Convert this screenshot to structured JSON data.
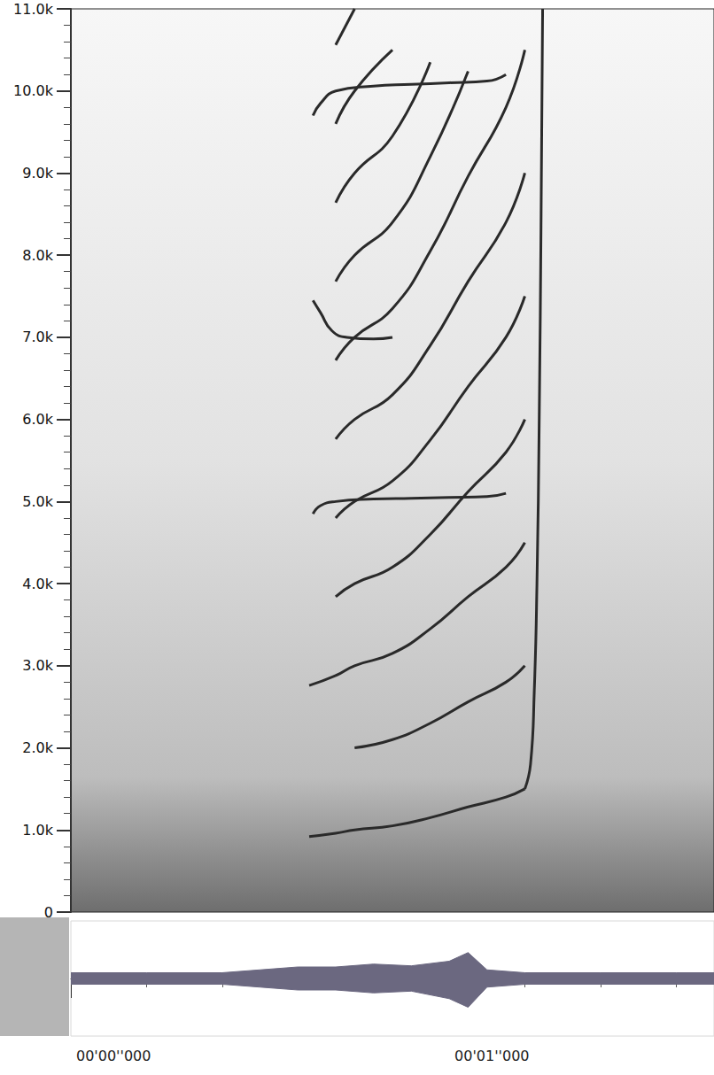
{
  "chart_data": [
    {
      "type": "line",
      "xlim": [
        0,
        1.7
      ],
      "ylim": [
        0,
        11000
      ],
      "yticks": [
        {
          "value": 0,
          "label": "0"
        },
        {
          "value": 1000,
          "label": "1.0k"
        },
        {
          "value": 2000,
          "label": "2.0k"
        },
        {
          "value": 3000,
          "label": "3.0k"
        },
        {
          "value": 4000,
          "label": "4.0k"
        },
        {
          "value": 5000,
          "label": "5.0k"
        },
        {
          "value": 6000,
          "label": "6.0k"
        },
        {
          "value": 7000,
          "label": "7.0k"
        },
        {
          "value": 8000,
          "label": "8.0k"
        },
        {
          "value": 9000,
          "label": "9.0k"
        },
        {
          "value": 10000,
          "label": "10.0k"
        },
        {
          "value": 11000,
          "label": "11.0k"
        }
      ],
      "tick_labels": "y",
      "grid": false,
      "color": "#2a2a2a",
      "series": [
        {
          "x": [
            0.63,
            0.7,
            0.75,
            0.85,
            0.95,
            1.05,
            1.15,
            1.2
          ],
          "values": [
            920,
            960,
            1000,
            1050,
            1150,
            1280,
            1400,
            1500
          ]
        },
        {
          "x": [
            0.75,
            0.85,
            0.95,
            1.05,
            1.15,
            1.2
          ],
          "values": [
            2000,
            2100,
            2300,
            2560,
            2800,
            3000
          ]
        },
        {
          "x": [
            0.63,
            0.7,
            0.75,
            0.85,
            0.95,
            1.05,
            1.15,
            1.2
          ],
          "values": [
            2760,
            2880,
            3000,
            3150,
            3450,
            3840,
            4200,
            4500
          ]
        },
        {
          "x": [
            0.7,
            0.75,
            0.85,
            0.95,
            1.05,
            1.15,
            1.2
          ],
          "values": [
            3840,
            4000,
            4200,
            4600,
            5120,
            5600,
            6000
          ]
        },
        {
          "x": [
            0.7,
            0.75,
            0.85,
            0.95,
            1.05,
            1.15,
            1.2
          ],
          "values": [
            4800,
            5000,
            5250,
            5750,
            6400,
            7000,
            7500
          ]
        },
        {
          "x": [
            0.7,
            0.75,
            0.85,
            0.95,
            1.05,
            1.15,
            1.2
          ],
          "values": [
            5760,
            6000,
            6300,
            6900,
            7680,
            8400,
            9000
          ]
        },
        {
          "x": [
            0.7,
            0.75,
            0.85,
            0.95,
            1.05,
            1.15,
            1.2
          ],
          "values": [
            6720,
            7000,
            7350,
            8050,
            8960,
            9800,
            10500
          ]
        },
        {
          "x": [
            0.7,
            0.75,
            0.85,
            0.95,
            1.05
          ],
          "values": [
            7680,
            8000,
            8400,
            9200,
            10240
          ]
        },
        {
          "x": [
            0.7,
            0.75,
            0.85,
            0.95
          ],
          "values": [
            8640,
            9000,
            9450,
            10350
          ]
        },
        {
          "x": [
            0.7,
            0.75,
            0.85
          ],
          "values": [
            9600,
            10000,
            10500
          ]
        },
        {
          "x": [
            0.7,
            0.75
          ],
          "values": [
            10560,
            11000
          ]
        },
        {
          "x": [
            1.2,
            1.215,
            1.225,
            1.232,
            1.238,
            1.243,
            1.247
          ],
          "values": [
            1500,
            1800,
            2700,
            4000,
            6000,
            8500,
            11000
          ]
        },
        {
          "x": [
            0.64,
            0.66,
            0.7,
            0.8,
            0.9,
            1.0,
            1.1,
            1.15
          ],
          "values": [
            4850,
            4950,
            5000,
            5030,
            5040,
            5050,
            5060,
            5100
          ]
        },
        {
          "x": [
            0.64,
            0.66,
            0.7,
            0.8,
            0.9,
            1.0,
            1.1,
            1.15
          ],
          "values": [
            9700,
            9850,
            10000,
            10060,
            10080,
            10100,
            10120,
            10200
          ]
        },
        {
          "x": [
            0.64,
            0.66,
            0.69,
            0.73,
            0.8,
            0.85
          ],
          "values": [
            7450,
            7300,
            7080,
            7000,
            6980,
            7000
          ]
        }
      ]
    },
    {
      "type": "area",
      "xlim": [
        0,
        1.7
      ],
      "ylim": [
        -1,
        1
      ],
      "xticks": [
        {
          "value": 0,
          "label": "00'00''000"
        },
        {
          "value": 1,
          "label": "00'01''000"
        }
      ],
      "tick_labels": "x",
      "grid": false,
      "color": "#6b6880",
      "x": [
        0,
        0.2,
        0.4,
        0.5,
        0.6,
        0.7,
        0.8,
        0.9,
        1.0,
        1.05,
        1.1,
        1.2,
        1.4,
        1.6,
        1.7
      ],
      "upper": [
        0.1,
        0.1,
        0.1,
        0.15,
        0.2,
        0.2,
        0.25,
        0.22,
        0.3,
        0.45,
        0.15,
        0.1,
        0.1,
        0.1,
        0.1
      ],
      "lower": [
        -0.1,
        -0.1,
        -0.1,
        -0.15,
        -0.2,
        -0.2,
        -0.25,
        -0.22,
        -0.35,
        -0.5,
        -0.15,
        -0.1,
        -0.1,
        -0.1,
        -0.1
      ]
    }
  ]
}
